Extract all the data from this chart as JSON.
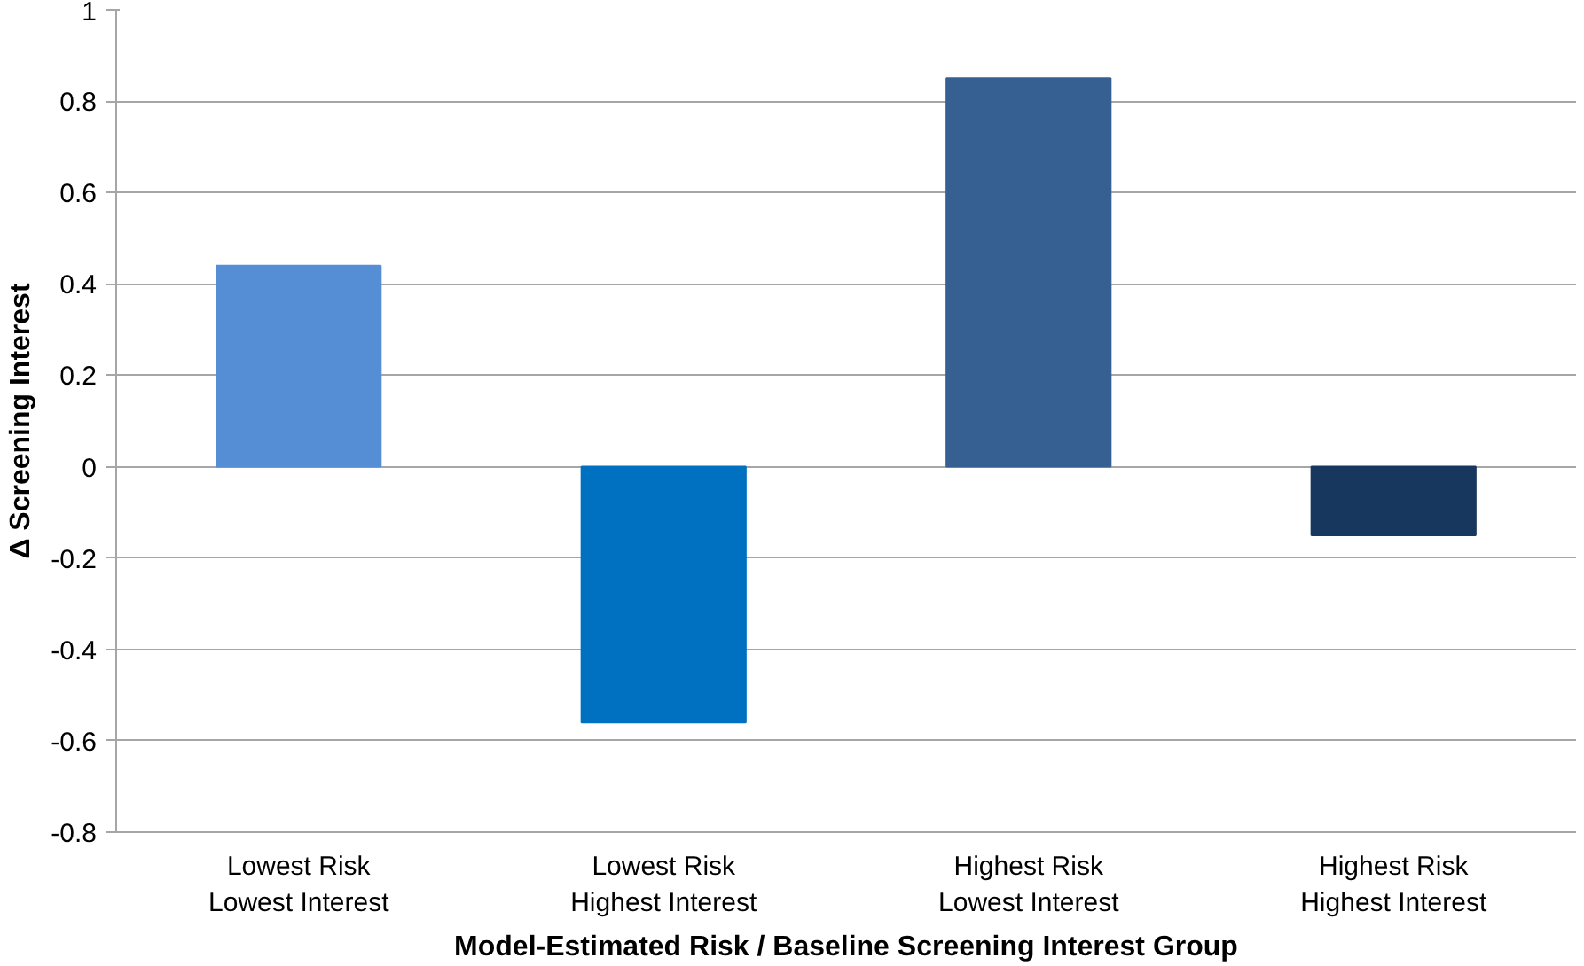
{
  "chart_data": {
    "type": "bar",
    "xlabel": "Model-Estimated Risk / Baseline Screening Interest Group",
    "ylabel": "Δ Screening Interest",
    "categories": [
      "Lowest Risk\nLowest Interest",
      "Lowest Risk\nHighest Interest",
      "Highest Risk\nLowest Interest",
      "Highest Risk\nHighest Interest"
    ],
    "values": [
      0.44,
      -0.56,
      0.85,
      -0.15
    ],
    "colors": [
      "#558ed5",
      "#0070c0",
      "#376092",
      "#17375e"
    ],
    "ylim": [
      -0.8,
      1
    ],
    "yticks": [
      -0.8,
      -0.6,
      -0.4,
      -0.2,
      0,
      0.2,
      0.4,
      0.6,
      0.8,
      1
    ],
    "grid": "y"
  }
}
